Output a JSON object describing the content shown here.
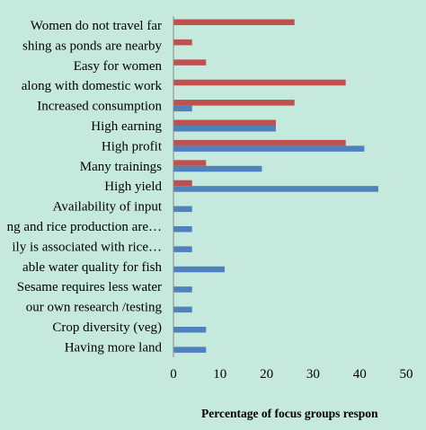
{
  "chart_data": {
    "type": "bar",
    "orientation": "horizontal",
    "categories": [
      "Women do not travel far",
      "Fishing as ponds are nearby",
      "Easy for women",
      "Can do along with domestic work",
      "Increased consumption",
      "High earning",
      "High profit",
      "Many trainings",
      "High yield",
      "Availability of input",
      "Fishing and rice production are...",
      "Family is associated with rice...",
      "Suitable water quality for fish",
      "Sesame requires less water",
      "Our own research /testing",
      "Crop diversity (veg)",
      "Having more land"
    ],
    "category_labels": [
      "Women do not travel far",
      "shing as ponds are nearby",
      "Easy for women",
      "along with domestic work",
      "Increased consumption",
      "High earning",
      "High profit",
      "Many trainings",
      "High yield",
      "Availability of input",
      "ng and rice production are…",
      "ily is associated with rice…",
      "able water quality for fish",
      "Sesame requires less water",
      "our own research /testing",
      "Crop diversity (veg)",
      "Having more land"
    ],
    "series": [
      {
        "color": "#c0504d",
        "values": [
          26,
          4,
          7,
          37,
          26,
          22,
          37,
          7,
          4,
          0,
          0,
          0,
          0,
          0,
          0,
          0,
          0
        ]
      },
      {
        "color": "#4f81bd",
        "values": [
          0,
          0,
          0,
          0,
          4,
          22,
          41,
          19,
          44,
          4,
          4,
          4,
          11,
          4,
          4,
          7,
          7
        ]
      }
    ],
    "xlabel": "Percentage of focus groups respon",
    "ylabel": "",
    "xlim": [
      0,
      50
    ],
    "xticks": [
      "0",
      "10",
      "20",
      "30",
      "40",
      "50"
    ],
    "grid": false,
    "background": "#c6e9de"
  }
}
